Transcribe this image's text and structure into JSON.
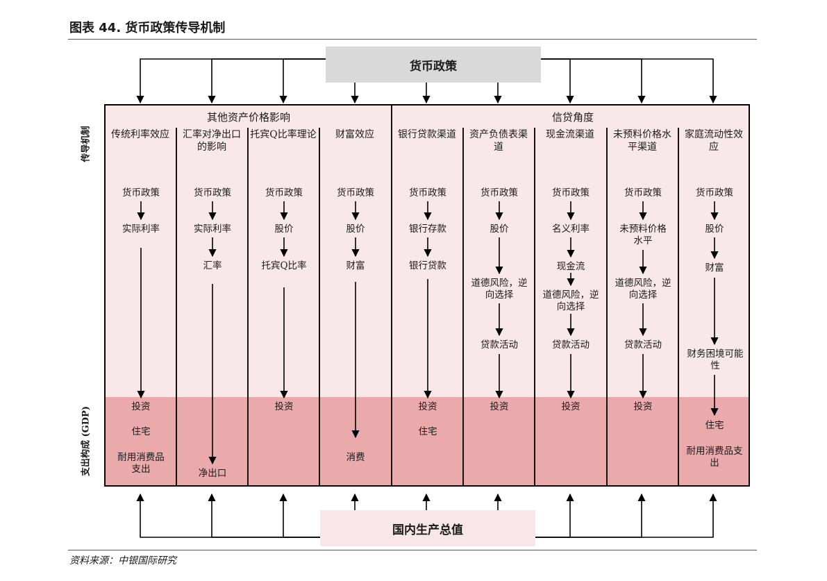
{
  "figure_title": "图表 44. 货币政策传导机制",
  "top_box_label": "货币政策",
  "bottom_box_label": "国内生产总值",
  "side_labels": {
    "mechanism": "传导机制",
    "expenditure": "支出构成 (GDP)"
  },
  "group_titles": {
    "other_assets": "其他资产价格影响",
    "credit": "信贷角度"
  },
  "columns": [
    {
      "title": "传统利率效应",
      "chain": [
        "货币政策",
        "实际利率"
      ],
      "outputs": [
        "投资",
        "住宅",
        "耐用消费品支出"
      ]
    },
    {
      "title": "汇率对净出口的影响",
      "chain": [
        "货币政策",
        "实际利率",
        "汇率"
      ],
      "outputs": [
        "净出口"
      ]
    },
    {
      "title": "托宾Q比率理论",
      "chain": [
        "货币政策",
        "股价",
        "托宾Q比率"
      ],
      "outputs": [
        "投资"
      ]
    },
    {
      "title": "财富效应",
      "chain": [
        "货币政策",
        "股价",
        "财富"
      ],
      "outputs": [
        "消费"
      ]
    },
    {
      "title": "银行贷款渠道",
      "chain": [
        "货币政策",
        "银行存款",
        "银行贷款"
      ],
      "outputs": [
        "投资",
        "住宅"
      ]
    },
    {
      "title": "资产负债表渠道",
      "chain": [
        "货币政策",
        "股价",
        "道德风险，逆向选择",
        "贷款活动"
      ],
      "outputs": [
        "投资"
      ]
    },
    {
      "title": "现金流渠道",
      "chain": [
        "货币政策",
        "名义利率",
        "现金流",
        "道德风险，逆向选择",
        "贷款活动"
      ],
      "outputs": [
        "投资"
      ]
    },
    {
      "title": "未预料价格水平渠道",
      "chain": [
        "货币政策",
        "未预料价格水平",
        "道德风险，逆向选择",
        "贷款活动"
      ],
      "outputs": [
        "投资"
      ]
    },
    {
      "title": "家庭流动性效应",
      "chain": [
        "货币政策",
        "股价",
        "财富",
        "财务困境可能性"
      ],
      "outputs": [
        "住宅",
        "耐用消费品支出"
      ]
    }
  ],
  "source": "资料来源：中银国际研究"
}
